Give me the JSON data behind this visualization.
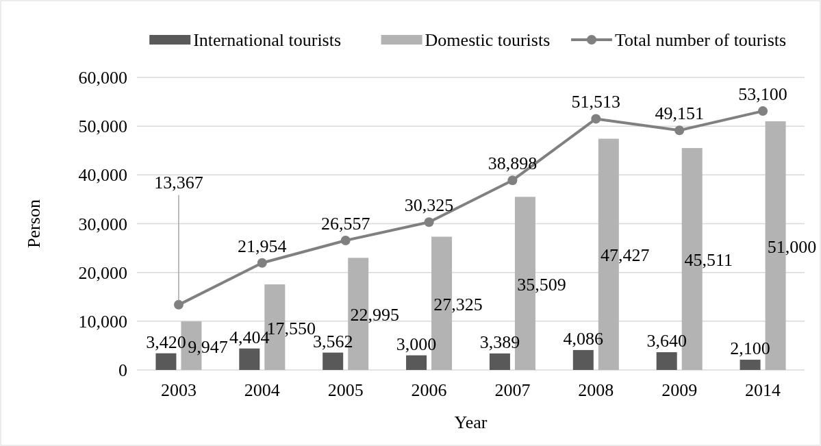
{
  "chart_data": {
    "type": "bar",
    "xlabel": "Year",
    "ylabel": "Person",
    "categories": [
      "2003",
      "2004",
      "2005",
      "2006",
      "2007",
      "2008",
      "2009",
      "2014"
    ],
    "series": [
      {
        "name": "International tourists",
        "color": "#595959",
        "values": [
          3420,
          4404,
          3562,
          3000,
          3389,
          4086,
          3640,
          2100
        ],
        "value_labels": [
          "3,420",
          "4,404",
          "3,562",
          "3,000",
          "3,389",
          "4,086",
          "3,640",
          "2,100"
        ]
      },
      {
        "name": "Domestic tourists",
        "color": "#b3b3b3",
        "values": [
          9947,
          17550,
          22995,
          27325,
          35509,
          47427,
          45511,
          51000
        ],
        "value_labels": [
          "9,947",
          "17,550",
          "22,995",
          "27,325",
          "35,509",
          "47,427",
          "45,511",
          "51,000"
        ]
      },
      {
        "name": "Total number of tourists",
        "type": "line",
        "color": "#808080",
        "marker": "circle",
        "values": [
          13367,
          21954,
          26557,
          30325,
          38898,
          51513,
          49151,
          53100
        ],
        "value_labels": [
          "13,367",
          "21,954",
          "26,557",
          "30,325",
          "38,898",
          "51,513",
          "49,151",
          "53,100"
        ]
      }
    ],
    "ylim": [
      0,
      60000
    ],
    "yticks": [
      {
        "value": 0,
        "label": "0"
      },
      {
        "value": 10000,
        "label": "10,000"
      },
      {
        "value": 20000,
        "label": "20,000"
      },
      {
        "value": 30000,
        "label": "30,000"
      },
      {
        "value": 40000,
        "label": "40,000"
      },
      {
        "value": 50000,
        "label": "50,000"
      },
      {
        "value": 60000,
        "label": "60,000"
      }
    ],
    "grid": "y",
    "legend": "top"
  }
}
